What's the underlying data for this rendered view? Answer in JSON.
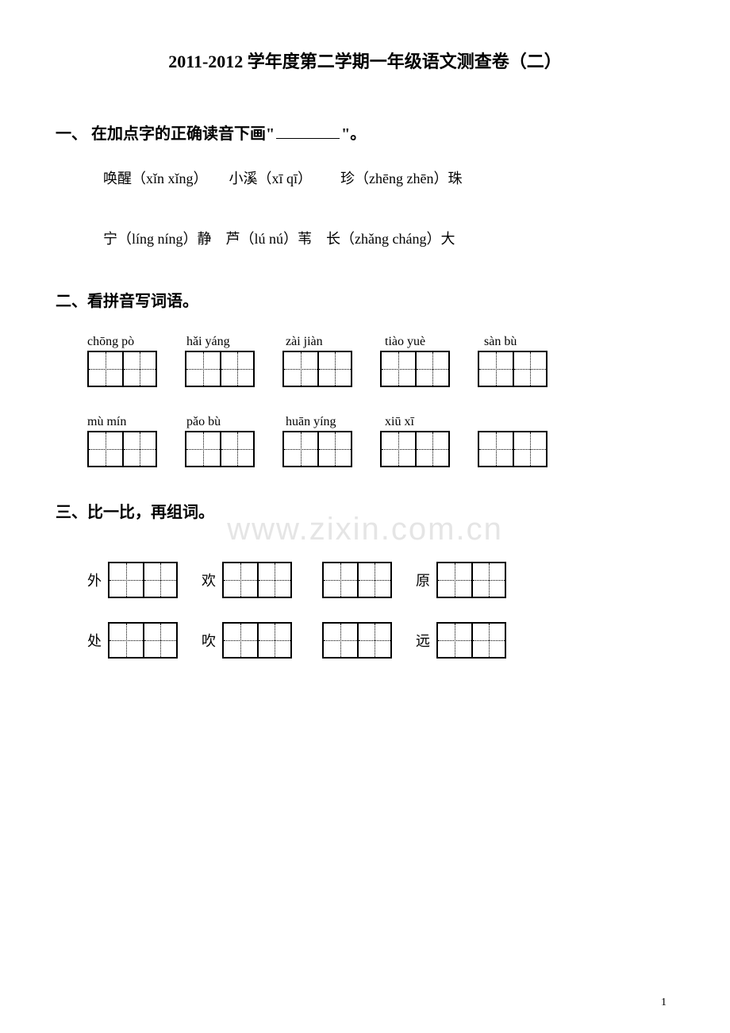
{
  "title": "2011-2012 学年度第二学期一年级语文测查卷（二）",
  "watermark": "www.zixin.com.cn",
  "page_number": "1",
  "section1": {
    "header_prefix": "一、",
    "header_text": "在加点字的正确读音下画\"",
    "header_suffix": "\"。",
    "row1": [
      {
        "ch": "唤醒（xǐn  xǐng）"
      },
      {
        "ch": "小溪（xī  qī）"
      },
      {
        "ch": "珍（zhēng  zhēn）珠"
      }
    ],
    "row2": [
      {
        "ch": "宁（líng  níng）静"
      },
      {
        "ch": "芦（lú  nú）苇"
      },
      {
        "ch": "长（zhǎng  cháng）大"
      }
    ]
  },
  "section2": {
    "header": "二、看拼音写词语。",
    "row1": [
      {
        "py": "chōng pò"
      },
      {
        "py": "hǎi yáng"
      },
      {
        "py": "zài jiàn"
      },
      {
        "py": "tiào yuè"
      },
      {
        "py": "sàn bù"
      }
    ],
    "row2": [
      {
        "py": "mù  mín"
      },
      {
        "py": "pǎo bù"
      },
      {
        "py": "huān yíng"
      },
      {
        "py": "xiū xī"
      },
      {
        "py": ""
      }
    ]
  },
  "section3": {
    "header": "三、比一比，再组词。",
    "row1": [
      "外",
      "欢",
      "",
      "原"
    ],
    "row2": [
      "处",
      "吹",
      "",
      "远"
    ]
  }
}
